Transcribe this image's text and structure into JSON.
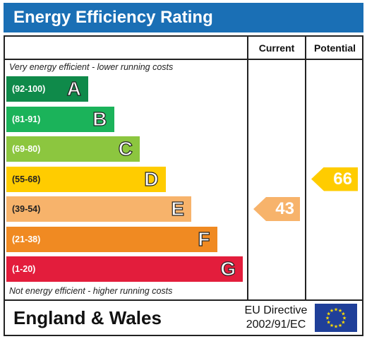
{
  "title": "Energy Efficiency Rating",
  "columns": {
    "current": "Current",
    "potential": "Potential"
  },
  "notes": {
    "top": "Very energy efficient - lower running costs",
    "bottom": "Not energy efficient - higher running costs"
  },
  "chart_data": {
    "type": "bar",
    "title": "Energy Efficiency Rating",
    "bands": [
      {
        "letter": "A",
        "range": "(92-100)",
        "color": "#0f8a4a"
      },
      {
        "letter": "B",
        "range": "(81-91)",
        "color": "#1bb35a"
      },
      {
        "letter": "C",
        "range": "(69-80)",
        "color": "#8cc63f"
      },
      {
        "letter": "D",
        "range": "(55-68)",
        "color": "#ffcc00"
      },
      {
        "letter": "E",
        "range": "(39-54)",
        "color": "#f7b36b"
      },
      {
        "letter": "F",
        "range": "(21-38)",
        "color": "#f08a22"
      },
      {
        "letter": "G",
        "range": "(1-20)",
        "color": "#e31d3c"
      }
    ],
    "current": {
      "value": 43,
      "band": "E",
      "color": "#f7b36b"
    },
    "potential": {
      "value": 66,
      "band": "D",
      "color": "#ffcc00"
    }
  },
  "footer": {
    "region": "England & Wales",
    "directive_line1": "EU Directive",
    "directive_line2": "2002/91/EC"
  }
}
